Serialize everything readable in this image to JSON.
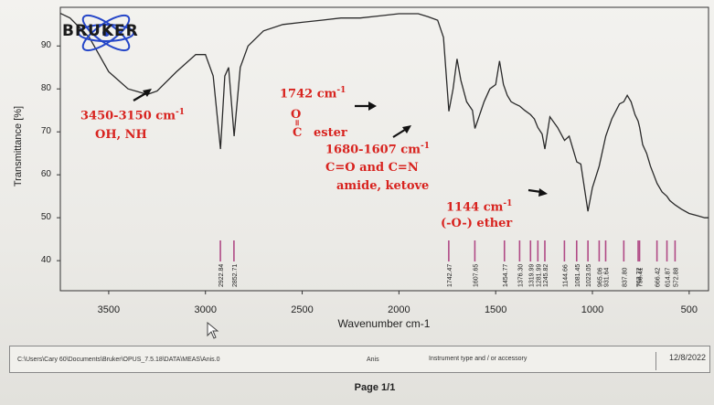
{
  "chart_data": {
    "type": "line",
    "xlabel": "Wavenumber cm-1",
    "ylabel": "Transmittance [%]",
    "xlim": [
      3750,
      400
    ],
    "ylim": [
      33,
      99
    ],
    "x_reversed": true,
    "x_ticks": [
      3500,
      3000,
      2500,
      2000,
      1500,
      1000,
      500
    ],
    "y_ticks": [
      40,
      50,
      60,
      70,
      80,
      90
    ],
    "series": [
      {
        "x": [
          3750,
          3700,
          3600,
          3500,
          3400,
          3300,
          3250,
          3150,
          3050,
          3000,
          2960,
          2922,
          2900,
          2880,
          2852,
          2820,
          2780,
          2700,
          2600,
          2500,
          2400,
          2300,
          2200,
          2100,
          2000,
          1900,
          1850,
          1800,
          1770,
          1742,
          1720,
          1700,
          1680,
          1650,
          1620,
          1607,
          1590,
          1560,
          1530,
          1500,
          1480,
          1460,
          1440,
          1420,
          1400,
          1376,
          1350,
          1320,
          1300,
          1282,
          1260,
          1246,
          1220,
          1180,
          1144,
          1120,
          1081,
          1060,
          1023,
          1000,
          965,
          931,
          900,
          860,
          838,
          820,
          800,
          780,
          764,
          756,
          740,
          720,
          700,
          666,
          640,
          615,
          600,
          573,
          540,
          500,
          460,
          420,
          400
        ],
        "y": [
          97.6,
          96.5,
          92,
          84,
          80,
          78.7,
          79.5,
          84,
          88,
          88,
          83,
          66,
          83,
          85,
          69,
          85,
          90,
          93.5,
          95,
          95.5,
          96,
          96.5,
          96.5,
          97,
          97.5,
          97.5,
          96.8,
          96,
          92,
          74.8,
          80,
          87,
          82,
          77,
          75,
          70.8,
          73,
          77,
          80,
          81,
          86.5,
          81,
          78.5,
          77,
          76.5,
          76,
          75,
          74,
          73,
          71,
          69.5,
          66,
          73.5,
          71,
          68,
          69,
          63,
          62.5,
          51.5,
          57,
          62,
          69,
          73,
          76.5,
          77,
          78.5,
          77,
          74,
          72.5,
          71,
          67,
          65,
          62,
          58,
          56,
          55,
          54,
          53,
          52,
          51,
          50.5,
          50,
          50
        ]
      }
    ],
    "peak_labels": [
      "2922.84",
      "2852.71",
      "1742.47",
      "1607.65",
      "1454.77",
      "1376.30",
      "1319.99",
      "1281.99",
      "1245.82",
      "1144.66",
      "1081.45",
      "1023.05",
      "965.06",
      "931.64",
      "837.80",
      "763.72",
      "756.41",
      "666.42",
      "614.87",
      "572.88"
    ],
    "peak_positions": [
      2922.84,
      2852.71,
      1742.47,
      1607.65,
      1454.77,
      1376.3,
      1319.99,
      1281.99,
      1245.82,
      1144.66,
      1081.45,
      1023.05,
      965.06,
      931.64,
      837.8,
      763.72,
      756.41,
      666.42,
      614.87,
      572.88
    ],
    "grid": false,
    "annotations": [
      {
        "text": "3450-3150 cm",
        "sup": "-1",
        "line2": "OH, NH"
      },
      {
        "text": "1742 cm",
        "sup": "-1",
        "line2": "ester"
      },
      {
        "text": "1680-1607 cm",
        "sup": "-1",
        "line2": "C=O and C=N",
        "line3": "amide, ketove"
      },
      {
        "text": "1144 cm",
        "sup": "-1",
        "line2": "(-O-) ether"
      }
    ],
    "annotation_color": "#d8231f",
    "line_color": "#2a2a2a",
    "peak_marker_color": "#b04a86"
  },
  "logo": {
    "text": "BRUKER",
    "color": "#2546c8"
  },
  "footer": {
    "path": "C:\\Users\\Cary 60\\Documents\\Bruker\\OPUS_7.5.18\\DATA\\MEAS\\Anis.0",
    "sample": "Anis",
    "accessory": "Instrument type and / or accessory",
    "date": "12/8/2022",
    "page": "Page 1/1"
  },
  "ester_glyph": {
    "top": "O",
    "bottom": "C"
  }
}
